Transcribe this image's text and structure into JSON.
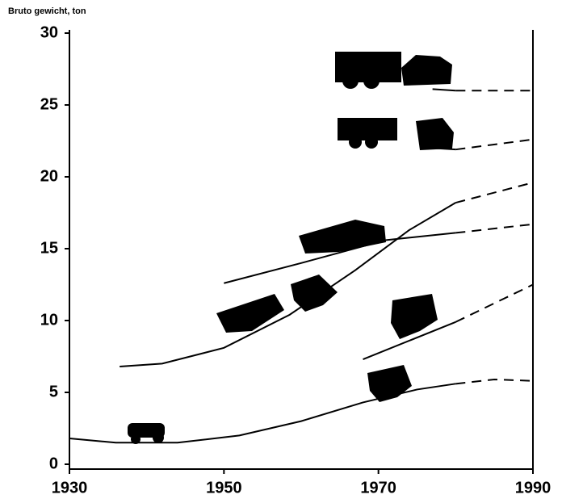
{
  "chart_data": {
    "type": "line",
    "y_label": "Bruto gewicht, ton",
    "xlim": [
      1930,
      1990
    ],
    "xticks": [
      1930,
      1950,
      1970,
      1990
    ],
    "ylim": [
      0,
      30
    ],
    "yticks": [
      0,
      5,
      10,
      15,
      20,
      25,
      30
    ],
    "series": [
      {
        "color": "#000",
        "dashed": false,
        "x": [
          1930,
          1936,
          1944,
          1952,
          1960,
          1968,
          1975,
          1980
        ],
        "values": [
          1.8,
          1.5,
          1.5,
          2.0,
          3.0,
          4.3,
          5.2,
          5.6
        ]
      },
      {
        "color": "#000",
        "dashed": true,
        "x": [
          1980,
          1985,
          1990
        ],
        "values": [
          5.6,
          5.9,
          5.8
        ]
      },
      {
        "color": "#000",
        "dashed": false,
        "x": [
          1968,
          1980
        ],
        "values": [
          7.3,
          9.9
        ]
      },
      {
        "color": "#000",
        "dashed": true,
        "x": [
          1980,
          1990
        ],
        "values": [
          9.9,
          12.5
        ]
      },
      {
        "color": "#000",
        "dashed": false,
        "x": [
          1936.5,
          1942,
          1950,
          1958.5,
          1967,
          1974,
          1980
        ],
        "values": [
          6.8,
          7.0,
          8.1,
          10.4,
          13.5,
          16.3,
          18.2
        ]
      },
      {
        "color": "#000",
        "dashed": true,
        "x": [
          1980,
          1990
        ],
        "values": [
          18.2,
          19.6
        ]
      },
      {
        "color": "#000",
        "dashed": false,
        "x": [
          1950,
          1960,
          1971,
          1980
        ],
        "values": [
          12.6,
          14.0,
          15.6,
          16.1
        ]
      },
      {
        "color": "#000",
        "dashed": true,
        "x": [
          1980,
          1990
        ],
        "values": [
          16.1,
          16.7
        ]
      },
      {
        "color": "#000",
        "dashed": false,
        "x": [
          1977,
          1980
        ],
        "values": [
          22.0,
          21.9
        ]
      },
      {
        "color": "#000",
        "dashed": true,
        "x": [
          1980,
          1990
        ],
        "values": [
          21.9,
          22.6
        ]
      },
      {
        "color": "#000",
        "dashed": false,
        "x": [
          1977,
          1980
        ],
        "values": [
          26.1,
          26.0
        ]
      },
      {
        "color": "#000",
        "dashed": true,
        "x": [
          1980,
          1990
        ],
        "values": [
          26.0,
          26.0
        ]
      }
    ]
  }
}
